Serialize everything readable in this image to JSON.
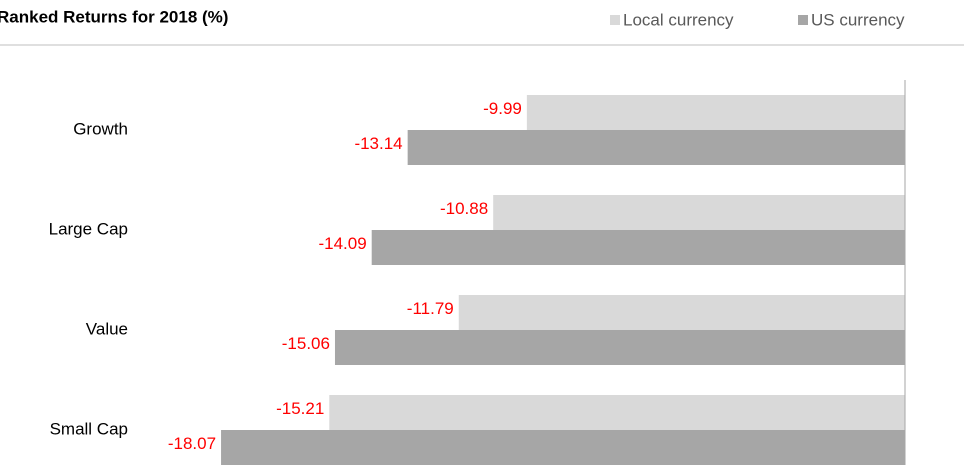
{
  "chart_data": {
    "type": "hbar",
    "title": "Ranked Returns for 2018 (%)",
    "categories": [
      "Growth",
      "Large Cap",
      "Value",
      "Small Cap"
    ],
    "series": [
      {
        "name": "Local currency",
        "color": "#d9d9d9",
        "values": [
          -9.99,
          -10.88,
          -11.79,
          -15.21
        ]
      },
      {
        "name": "US currency",
        "color": "#a6a6a6",
        "values": [
          -13.14,
          -14.09,
          -15.06,
          -18.07
        ]
      }
    ],
    "xlim": [
      -20,
      0
    ],
    "label_color": "#ff0000",
    "legend": "top-right"
  }
}
